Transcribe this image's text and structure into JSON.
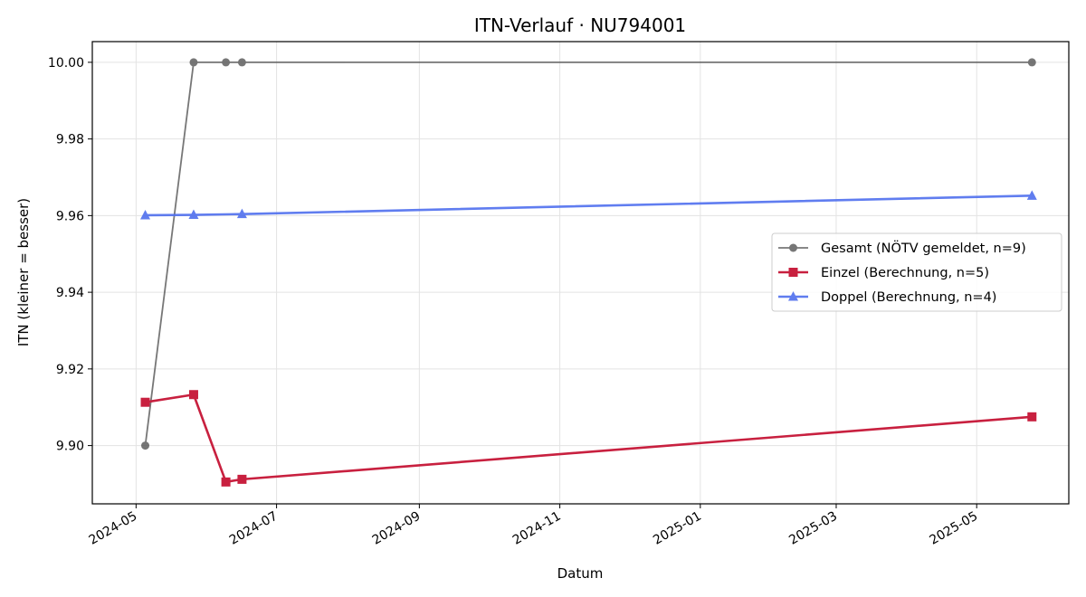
{
  "chart_data": {
    "type": "line",
    "title": "ITN-Verlauf · NU794001",
    "xlabel": "Datum",
    "ylabel": "ITN  (kleiner = besser)",
    "x_type": "date",
    "xlim": [
      "2024-04-12",
      "2025-06-10"
    ],
    "ylim": [
      9.8848,
      10.0054
    ],
    "grid": true,
    "legend_position": "center-right",
    "x_ticks": [
      "2024-05-01",
      "2024-07-01",
      "2024-09-01",
      "2024-11-01",
      "2025-01-01",
      "2025-03-01",
      "2025-05-01"
    ],
    "x_tick_labels": [
      "2024-05",
      "2024-07",
      "2024-09",
      "2024-11",
      "2025-01",
      "2025-03",
      "2025-05"
    ],
    "y_ticks": [
      9.9,
      9.92,
      9.94,
      9.96,
      9.98,
      10.0
    ],
    "y_tick_labels": [
      "9.90",
      "9.92",
      "9.94",
      "9.96",
      "9.98",
      "10.00"
    ],
    "series": [
      {
        "name": "Gesamt (NÖTV gemeldet, n=9)",
        "color": "#555555",
        "marker": "circle",
        "x": [
          "2024-05-05",
          "2024-05-26",
          "2024-06-09",
          "2024-06-16",
          "2025-05-25"
        ],
        "y": [
          9.9,
          10.0,
          10.0,
          10.0,
          10.0
        ]
      },
      {
        "name": "Einzel (Berechnung, n=5)",
        "color": "#c8203f",
        "marker": "square",
        "x": [
          "2024-05-05",
          "2024-05-26",
          "2024-06-09",
          "2024-06-16",
          "2025-05-25"
        ],
        "y": [
          9.9113,
          9.9133,
          9.8905,
          9.8912,
          9.9075
        ]
      },
      {
        "name": "Doppel (Berechnung, n=4)",
        "color": "#4f6fee",
        "marker": "triangle",
        "x": [
          "2024-05-05",
          "2024-05-26",
          "2024-06-16",
          "2025-05-25"
        ],
        "y": [
          9.9601,
          9.9602,
          9.9604,
          9.9652
        ]
      }
    ]
  }
}
